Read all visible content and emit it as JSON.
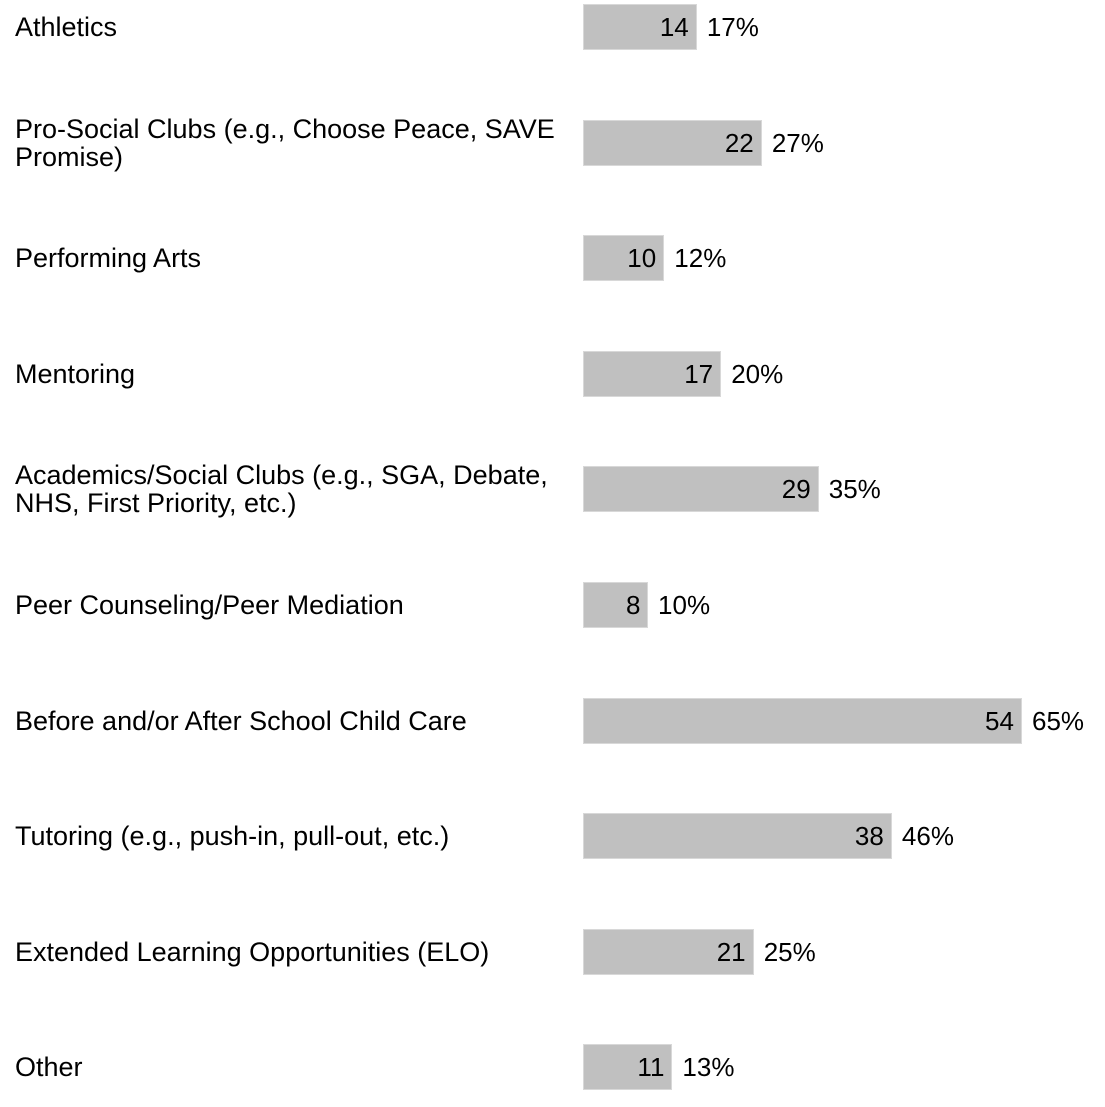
{
  "chart_data": {
    "type": "bar",
    "categories": [
      "Athletics",
      "Pro-Social Clubs (e.g., Choose Peace, SAVE Promise)",
      "Performing Arts",
      "Mentoring",
      "Academics/Social Clubs (e.g., SGA, Debate, NHS, First Priority, etc.)",
      "Peer Counseling/Peer Mediation",
      "Before and/or After School Child Care",
      "Tutoring (e.g., push-in, pull-out, etc.)",
      "Extended Learning Opportunities (ELO)",
      "Other"
    ],
    "values": [
      14,
      22,
      10,
      17,
      29,
      8,
      54,
      38,
      21,
      11
    ],
    "percent_labels": [
      "17%",
      "27%",
      "12%",
      "20%",
      "35%",
      "10%",
      "65%",
      "46%",
      "25%",
      "13%"
    ],
    "color": "#c0c0c0"
  }
}
